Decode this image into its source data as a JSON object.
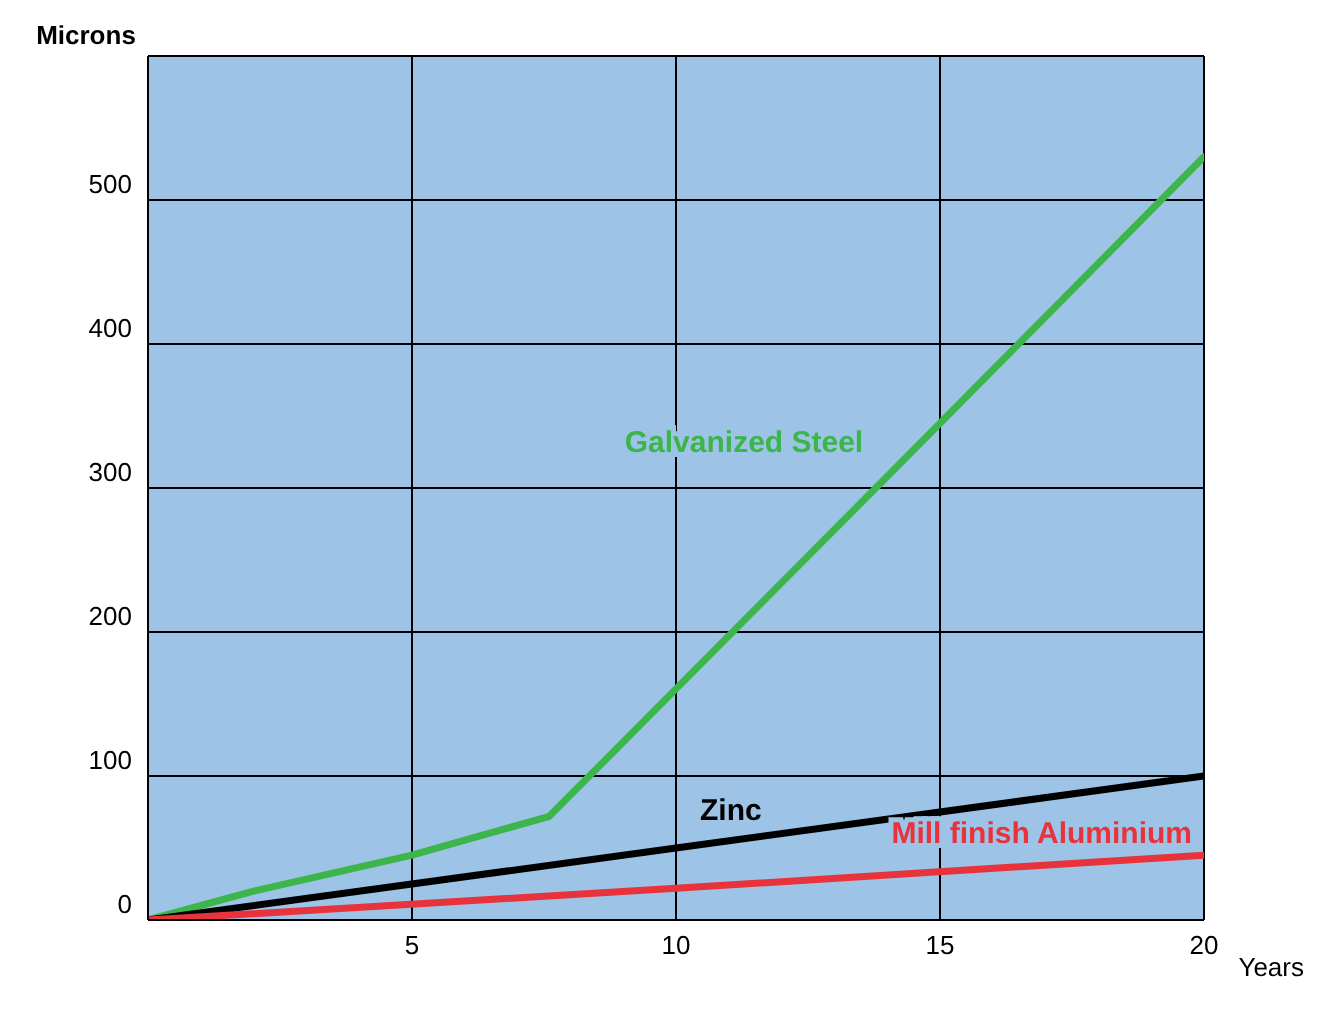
{
  "chart_data": {
    "type": "line",
    "xlabel": "Years",
    "ylabel": "Microns",
    "xlim": [
      0,
      20
    ],
    "xticks": [
      5,
      10,
      15,
      20
    ],
    "ylim": [
      0,
      600
    ],
    "yticks": [
      0,
      100,
      200,
      300,
      400,
      500
    ],
    "grid": true,
    "marker": "none",
    "line_style": "solid",
    "series": [
      {
        "name": "Galvanized Steel",
        "color": "#3cb54a",
        "x": [
          0,
          2,
          5,
          7.6,
          14,
          20
        ],
        "values": [
          0,
          20,
          45,
          72,
          308,
          530
        ]
      },
      {
        "name": "Zinc",
        "color": "#000000",
        "x": [
          0,
          10,
          20
        ],
        "values": [
          0,
          50,
          100
        ]
      },
      {
        "name": "Mill finish Aluminium",
        "color": "#e8323c",
        "x": [
          0,
          10,
          20
        ],
        "values": [
          0,
          22,
          45
        ]
      }
    ]
  }
}
